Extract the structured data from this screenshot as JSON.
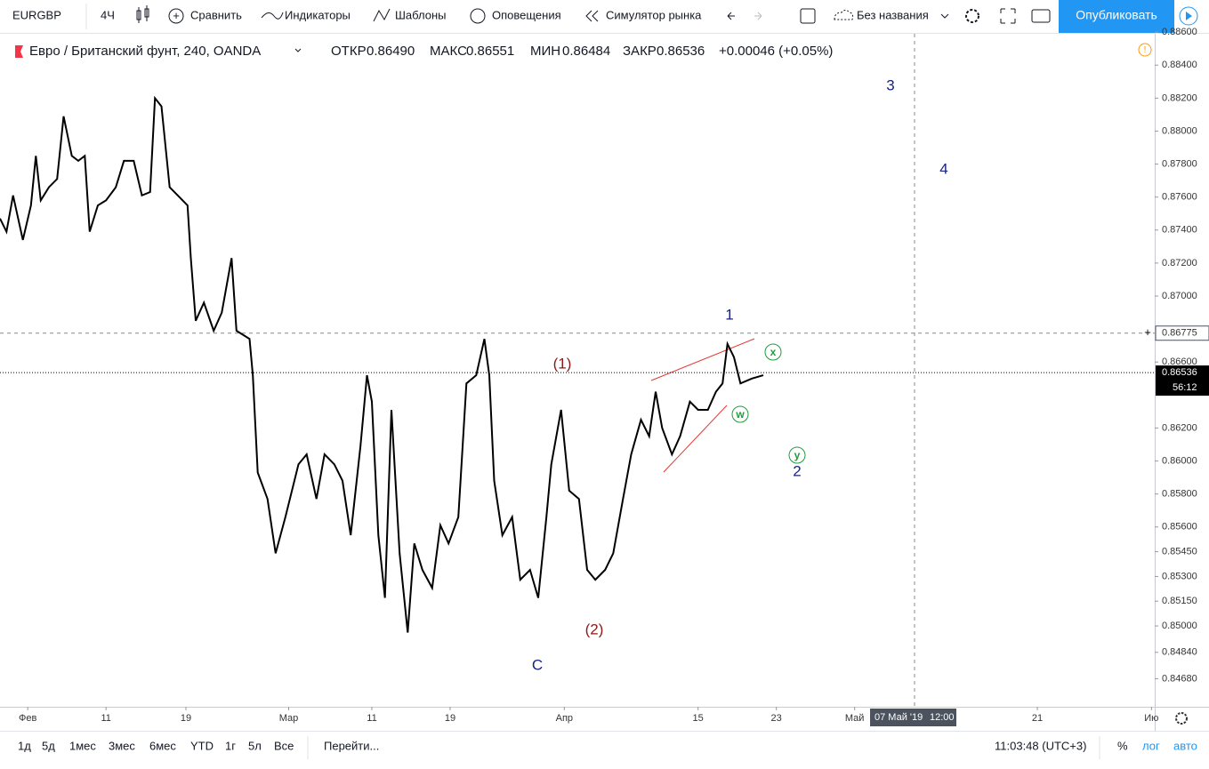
{
  "toolbar": {
    "symbol": "EURGBP",
    "interval": "4Ч",
    "compare": "Сравнить",
    "indicators": "Индикаторы",
    "templates": "Шаблоны",
    "alerts": "Оповещения",
    "replay": "Симулятор рынка",
    "layout_name": "Без названия",
    "publish": "Опубликовать"
  },
  "legend": {
    "title": "Евро / Британский фунт, 240, OANDA",
    "open_label": "ОТКР",
    "open": "0.86490",
    "high_label": "МАКС",
    "high": "0.86551",
    "low_label": "МИН",
    "low": "0.86484",
    "close_label": "ЗАКР",
    "close": "0.86536",
    "change": "+0.00046 (+0.05%)"
  },
  "chart_data": {
    "type": "line",
    "color": "#000000",
    "grid": false,
    "x": [
      0,
      4,
      8,
      14,
      19,
      22,
      25,
      30,
      35,
      39,
      44,
      48,
      52,
      55,
      60,
      65,
      71,
      76,
      82,
      87,
      92,
      95,
      99,
      104,
      109,
      115,
      117,
      120,
      125,
      131,
      136,
      142,
      145,
      153,
      155,
      158,
      164,
      169,
      175,
      183,
      188,
      194,
      199,
      205,
      210,
      215,
      221,
      225,
      228,
      232,
      236,
      240,
      245,
      250,
      254,
      259,
      265,
      270,
      275,
      281,
      286,
      292,
      297,
      300,
      303,
      308,
      314,
      319,
      325,
      330,
      335,
      338,
      344,
      349,
      355,
      360,
      365,
      371,
      376,
      382,
      387,
      393,
      398,
      402,
      406,
      412,
      417,
      423,
      428,
      434,
      439,
      443,
      446,
      450,
      454,
      461,
      468
    ],
    "values": [
      0.8747,
      0.8739,
      0.8761,
      0.8734,
      0.8755,
      0.8785,
      0.8758,
      0.8766,
      0.8771,
      0.8809,
      0.8785,
      0.8782,
      0.8785,
      0.8739,
      0.8755,
      0.8758,
      0.8766,
      0.8782,
      0.8782,
      0.8761,
      0.8763,
      0.882,
      0.8815,
      0.8766,
      0.8761,
      0.8755,
      0.8723,
      0.8685,
      0.8696,
      0.8679,
      0.869,
      0.8723,
      0.8679,
      0.8674,
      0.8652,
      0.8593,
      0.8577,
      0.8544,
      0.8566,
      0.8598,
      0.8604,
      0.8577,
      0.8604,
      0.8598,
      0.8588,
      0.8555,
      0.8609,
      0.8652,
      0.8636,
      0.8555,
      0.8517,
      0.8631,
      0.8544,
      0.8496,
      0.855,
      0.8534,
      0.8523,
      0.8561,
      0.855,
      0.8566,
      0.8647,
      0.8652,
      0.8674,
      0.8652,
      0.8588,
      0.8555,
      0.8566,
      0.8528,
      0.8534,
      0.8517,
      0.8566,
      0.8598,
      0.8631,
      0.8582,
      0.8577,
      0.8534,
      0.8528,
      0.8534,
      0.8544,
      0.8577,
      0.8604,
      0.8625,
      0.8615,
      0.8642,
      0.862,
      0.8604,
      0.8615,
      0.8636,
      0.8631,
      0.8631,
      0.8642,
      0.8647,
      0.8671,
      0.8663,
      0.8647,
      0.865,
      0.8652
    ],
    "xlim": [
      0,
      708
    ],
    "xticks": [
      {
        "value": 17,
        "label": "Фев"
      },
      {
        "value": 65,
        "label": "11"
      },
      {
        "value": 114,
        "label": "19"
      },
      {
        "value": 177,
        "label": "Мар"
      },
      {
        "value": 228,
        "label": "11"
      },
      {
        "value": 276,
        "label": "19"
      },
      {
        "value": 346,
        "label": "Апр"
      },
      {
        "value": 428,
        "label": "15"
      },
      {
        "value": 476,
        "label": "23"
      },
      {
        "value": 524,
        "label": "Май"
      },
      {
        "value": 636,
        "label": "21"
      },
      {
        "value": 706,
        "label": "Ию"
      }
    ],
    "ylim": [
      0.8451,
      0.8859
    ],
    "yticks": [
      {
        "value": 0.886,
        "label": "0.88600"
      },
      {
        "value": 0.884,
        "label": "0.88400"
      },
      {
        "value": 0.882,
        "label": "0.88200"
      },
      {
        "value": 0.88,
        "label": "0.88000"
      },
      {
        "value": 0.878,
        "label": "0.87800"
      },
      {
        "value": 0.876,
        "label": "0.87600"
      },
      {
        "value": 0.874,
        "label": "0.87400"
      },
      {
        "value": 0.872,
        "label": "0.87200"
      },
      {
        "value": 0.87,
        "label": "0.87000"
      },
      {
        "value": 0.866,
        "label": "0.86600"
      },
      {
        "value": 0.862,
        "label": "0.86200"
      },
      {
        "value": 0.86,
        "label": "0.86000"
      },
      {
        "value": 0.858,
        "label": "0.85800"
      },
      {
        "value": 0.856,
        "label": "0.85600"
      },
      {
        "value": 0.8545,
        "label": "0.85450"
      },
      {
        "value": 0.853,
        "label": "0.85300"
      },
      {
        "value": 0.8515,
        "label": "0.85150"
      },
      {
        "value": 0.85,
        "label": "0.85000"
      },
      {
        "value": 0.8484,
        "label": "0.84840"
      },
      {
        "value": 0.8468,
        "label": "0.84680"
      }
    ],
    "crosshair_price": 0.86775,
    "last_price": 0.86536,
    "countdown": "56:12",
    "crosshair_date": "07 Май '19",
    "crosshair_time": "12:00",
    "annotations": [
      "3",
      "4",
      "1",
      "(1)",
      "(2)",
      "C",
      "2",
      "x",
      "w",
      "y"
    ]
  },
  "bottom_bar": {
    "ranges": [
      "1д",
      "5д",
      "1мес",
      "3мес",
      "6мес",
      "YTD",
      "1г",
      "5л",
      "Все"
    ],
    "goto": "Перейти...",
    "clock": "11:03:48 (UTC+3)",
    "percent": "%",
    "log": "лог",
    "auto": "авто"
  }
}
